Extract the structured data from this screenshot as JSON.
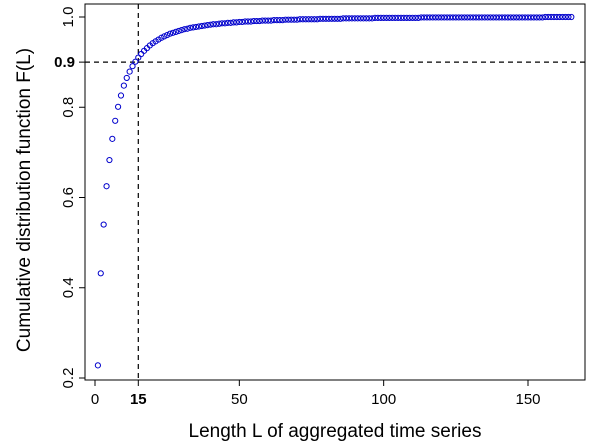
{
  "chart_data": {
    "type": "scatter",
    "title": "",
    "xlabel": "Length L of aggregated time series",
    "ylabel": "Cumulative distribution function  F(L)",
    "xlim": [
      0,
      165
    ],
    "ylim": [
      0.2,
      1.0
    ],
    "x_ticks": [
      0,
      50,
      100,
      150
    ],
    "y_ticks": [
      0.2,
      0.4,
      0.6,
      0.8,
      1.0
    ],
    "x_ticks_labels": [
      "0",
      "50",
      "100",
      "150"
    ],
    "y_ticks_labels": [
      "0.2",
      "0.4",
      "0.6",
      "0.8",
      "1.0"
    ],
    "highlight_x": {
      "value": 15,
      "label": "15"
    },
    "highlight_y": {
      "value": 0.9,
      "label": "0.9"
    },
    "grid": false,
    "legend": "none",
    "marker": "open-circle",
    "colors": {
      "points": "#0000cc",
      "axes": "#000000",
      "reference_lines": "#000000"
    },
    "points": {
      "x_start": 1,
      "x_end": 165,
      "x_step": 1,
      "y": [
        0.228,
        0.432,
        0.54,
        0.625,
        0.683,
        0.73,
        0.77,
        0.801,
        0.826,
        0.848,
        0.865,
        0.879,
        0.891,
        0.901,
        0.91,
        0.918,
        0.925,
        0.931,
        0.937,
        0.942,
        0.946,
        0.95,
        0.954,
        0.957,
        0.96,
        0.963,
        0.965,
        0.967,
        0.969,
        0.971,
        0.973,
        0.974,
        0.976,
        0.977,
        0.978,
        0.979,
        0.98,
        0.981,
        0.982,
        0.983,
        0.984,
        0.984,
        0.985,
        0.986,
        0.986,
        0.987,
        0.987,
        0.988,
        0.988,
        0.989,
        0.989,
        0.99,
        0.99,
        0.99,
        0.991,
        0.991,
        0.991,
        0.992,
        0.992,
        0.992,
        0.992,
        0.993,
        0.993,
        0.993,
        0.993,
        0.994,
        0.994,
        0.994,
        0.994,
        0.994,
        0.995,
        0.995,
        0.995,
        0.995,
        0.995,
        0.995,
        0.995,
        0.996,
        0.996,
        0.996,
        0.996,
        0.996,
        0.996,
        0.996,
        0.996,
        0.997,
        0.997,
        0.997,
        0.997,
        0.997,
        0.997,
        0.997,
        0.997,
        0.997,
        0.997,
        0.997,
        0.998,
        0.998,
        0.998,
        0.998,
        0.998,
        0.998,
        0.998,
        0.998,
        0.998,
        0.998,
        0.998,
        0.998,
        0.998,
        0.998,
        0.998,
        0.998,
        0.999,
        0.999,
        0.999,
        0.999,
        0.999,
        0.999,
        0.999,
        0.999,
        0.999,
        0.999,
        0.999,
        0.999,
        0.999,
        0.999,
        0.999,
        0.999,
        0.999,
        0.999,
        0.999,
        0.999,
        0.999,
        0.999,
        0.999,
        0.999,
        0.999,
        0.999,
        0.999,
        0.999,
        0.999,
        0.999,
        0.999,
        0.999,
        0.999,
        0.999,
        0.999,
        0.999,
        0.999,
        0.999,
        0.999,
        0.999,
        0.999,
        0.999,
        0.999,
        1.0,
        1.0,
        1.0,
        1.0,
        1.0,
        1.0,
        1.0,
        1.0,
        1.0,
        1.0
      ]
    }
  }
}
